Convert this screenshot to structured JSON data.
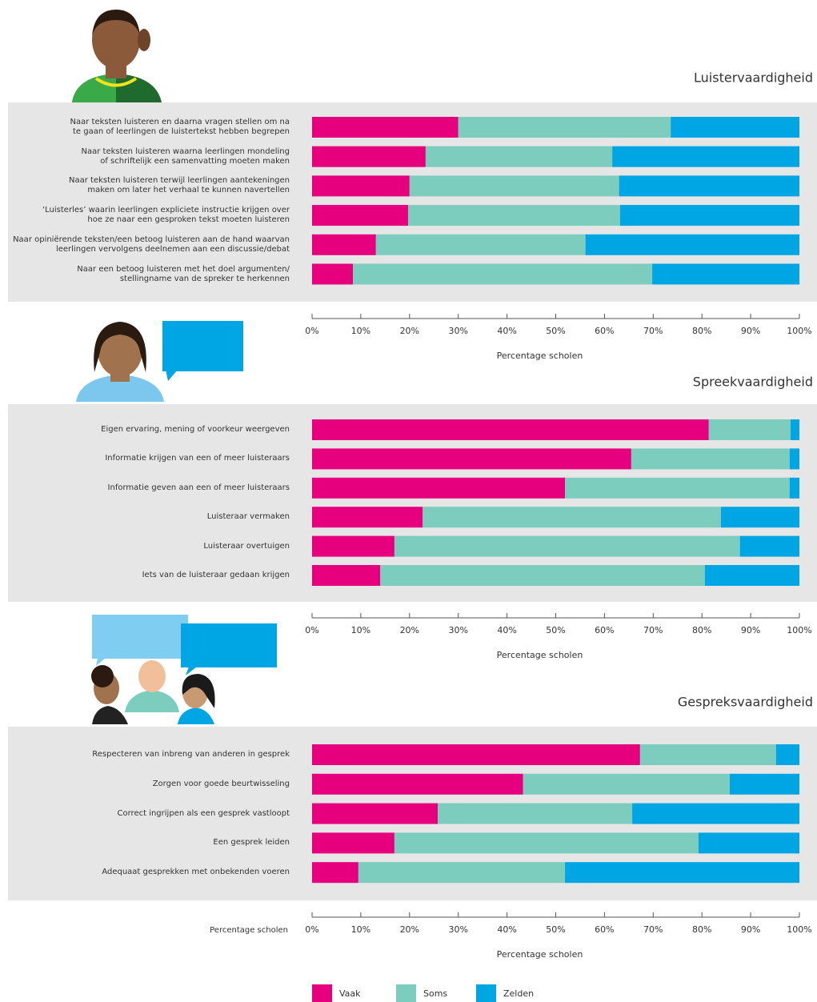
{
  "chart_data": [
    {
      "type": "stacked-bar-horizontal",
      "title": "Luistervaardigheid",
      "categories": [
        "Naar teksten luisteren en daarna vragen stellen om na\nte gaan of leerlingen de luistertekst hebben begrepen",
        "Naar teksten luisteren waarna leerlingen mondeling\nof schriftelijk een samenvatting moeten maken",
        "Naar teksten luisteren terwijl leerlingen aantekeningen\nmaken om later het verhaal te kunnen navertellen",
        "‘Luisterles’ waarin leerlingen expliciete instructie krijgen over\nhoe ze naar een gesproken tekst moeten luisteren",
        "Naar opiniërende teksten/een betoog luisteren aan de hand waarvan\nleerlingen vervolgens deelnemen aan een discussie/debat",
        "Naar een betoog luisteren met het doel argumenten/\nstellingname van de spreker te herkennen"
      ],
      "series": [
        {
          "color": "#e6007e",
          "values": [
            30,
            23.3,
            20,
            19.7,
            13.1,
            8.4
          ]
        },
        {
          "color": "#7dcdbe",
          "values": [
            43.6,
            38.3,
            43,
            43.5,
            43,
            61.4
          ]
        },
        {
          "color": "#00a5e3",
          "values": [
            26.4,
            38.4,
            37,
            36.8,
            43.9,
            30.2
          ]
        }
      ],
      "x_label": "Percentage scholen",
      "xlim": [
        0,
        100
      ],
      "xticks": [
        {
          "value": 0,
          "label": "0%"
        },
        {
          "value": 10,
          "label": "10%"
        },
        {
          "value": 20,
          "label": "20%"
        },
        {
          "value": 30,
          "label": "30%"
        },
        {
          "value": 40,
          "label": "40%"
        },
        {
          "value": 50,
          "label": "50%"
        },
        {
          "value": 60,
          "label": "60%"
        },
        {
          "value": 70,
          "label": "70%"
        },
        {
          "value": 80,
          "label": "80%"
        },
        {
          "value": 90,
          "label": "90%"
        },
        {
          "value": 100,
          "label": "100%"
        }
      ]
    },
    {
      "type": "stacked-bar-horizontal",
      "title": "Spreekvaardigheid",
      "categories": [
        "Eigen ervaring, mening of voorkeur weergeven",
        "Informatie krijgen van een of meer luisteraars",
        "Informatie geven aan een of meer luisteraars",
        "Luisteraar vermaken",
        "Luisteraar overtuigen",
        "Iets van de luisteraar gedaan krijgen"
      ],
      "series": [
        {
          "color": "#e6007e",
          "values": [
            81.4,
            65.5,
            51.9,
            22.7,
            16.9,
            14
          ]
        },
        {
          "color": "#7dcdbe",
          "values": [
            16.8,
            32.5,
            46.1,
            61.2,
            70.9,
            66.6
          ]
        },
        {
          "color": "#00a5e3",
          "values": [
            1.8,
            2,
            2,
            16.1,
            12.2,
            19.4
          ]
        }
      ],
      "x_label": "Percentage scholen",
      "xlim": [
        0,
        100
      ],
      "xticks": [
        {
          "value": 0,
          "label": "0%"
        },
        {
          "value": 10,
          "label": "10%"
        },
        {
          "value": 20,
          "label": "20%"
        },
        {
          "value": 30,
          "label": "30%"
        },
        {
          "value": 40,
          "label": "40%"
        },
        {
          "value": 50,
          "label": "50%"
        },
        {
          "value": 60,
          "label": "60%"
        },
        {
          "value": 70,
          "label": "70%"
        },
        {
          "value": 80,
          "label": "80%"
        },
        {
          "value": 90,
          "label": "90%"
        },
        {
          "value": 100,
          "label": "100%"
        }
      ]
    },
    {
      "type": "stacked-bar-horizontal",
      "title": "Gespreksvaardigheid",
      "categories": [
        "Respecteren van inbreng van anderen in gesprek",
        "Zorgen voor goede beurtwisseling",
        "Correct ingrijpen als een gesprek vastloopt",
        "Een gesprek leiden",
        "Adequaat gesprekken met onbekenden voeren"
      ],
      "series": [
        {
          "name": "Vaak",
          "color": "#e6007e",
          "values": [
            67.3,
            43.3,
            25.8,
            16.9,
            9.5
          ]
        },
        {
          "name": "Soms",
          "color": "#7dcdbe",
          "values": [
            27.9,
            42.4,
            39.9,
            62.4,
            42.4
          ]
        },
        {
          "name": "Zelden",
          "color": "#00a5e3",
          "values": [
            4.8,
            14.3,
            34.3,
            20.7,
            48.1
          ]
        }
      ],
      "axis_side_label": "Percentage scholen",
      "x_label": "Percentage scholen",
      "xlim": [
        0,
        100
      ],
      "xticks": [
        {
          "value": 0,
          "label": "0%"
        },
        {
          "value": 10,
          "label": "10%"
        },
        {
          "value": 20,
          "label": "20%"
        },
        {
          "value": 30,
          "label": "30%"
        },
        {
          "value": 40,
          "label": "40%"
        },
        {
          "value": 50,
          "label": "50%"
        },
        {
          "value": 60,
          "label": "60%"
        },
        {
          "value": 70,
          "label": "70%"
        },
        {
          "value": 80,
          "label": "80%"
        },
        {
          "value": 90,
          "label": "90%"
        },
        {
          "value": 100,
          "label": "100%"
        }
      ]
    }
  ]
}
